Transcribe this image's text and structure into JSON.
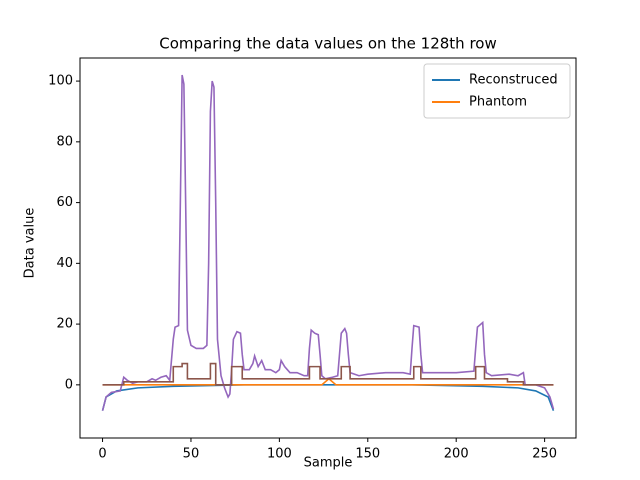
{
  "chart_data": {
    "type": "line",
    "title": "Comparing the data values on the 128th row",
    "xlabel": "Sample",
    "ylabel": "Data value",
    "xlim": [
      -12.75,
      267.75
    ],
    "ylim": [
      -17.5,
      107.6
    ],
    "xticks": [
      0,
      50,
      100,
      150,
      200,
      250
    ],
    "yticks": [
      0,
      20,
      40,
      60,
      80,
      100
    ],
    "legend": "upper right",
    "series": [
      {
        "name": "Reconstruced",
        "color": "#1f77b4",
        "x": [
          0,
          2,
          8,
          20,
          40,
          80,
          175,
          215,
          235,
          245,
          252,
          255
        ],
        "values": [
          -8.5,
          -4,
          -2,
          -1,
          -0.5,
          0,
          0,
          -0.5,
          -1,
          -2,
          -4,
          -8.5
        ]
      },
      {
        "name": "Phantom",
        "color": "#ff7f0e",
        "x": [
          0,
          124,
          128,
          132,
          255
        ],
        "values": [
          0,
          0,
          2,
          0,
          0
        ]
      },
      {
        "color": "#9467bd",
        "x": [
          0,
          2,
          5,
          10,
          12,
          14,
          17,
          20,
          25,
          28,
          30,
          33,
          36,
          38,
          40,
          41,
          43,
          44,
          45,
          46,
          47,
          48,
          50,
          53,
          57,
          59,
          60,
          61,
          62,
          63,
          64,
          65,
          67,
          69,
          71,
          72,
          73,
          74,
          76,
          78,
          79,
          80,
          83,
          85,
          86,
          88,
          90,
          92,
          95,
          98,
          100,
          101,
          103,
          106,
          110,
          114,
          116,
          117,
          118,
          120,
          122,
          123,
          124,
          126,
          130,
          133,
          134,
          135,
          137,
          138,
          139,
          140,
          145,
          150,
          160,
          170,
          174,
          175,
          176,
          179,
          180,
          181,
          190,
          200,
          210,
          211,
          212,
          215,
          216,
          217,
          220,
          230,
          235,
          238,
          239,
          245,
          250,
          253,
          255
        ],
        "values": [
          -8.5,
          -4,
          -2.5,
          -2,
          2.5,
          1.5,
          0.5,
          1,
          1,
          2,
          1.5,
          2.5,
          3,
          1.5,
          15,
          19,
          19.5,
          60,
          102,
          99,
          60,
          18,
          13,
          12,
          12,
          13,
          40,
          90,
          100,
          98,
          60,
          15,
          3,
          -1,
          -4,
          -3,
          5,
          15,
          17.5,
          17,
          10,
          5,
          5,
          7,
          9.5,
          6,
          8,
          5,
          5,
          4,
          5,
          8,
          6,
          4,
          4,
          3,
          3,
          12,
          18,
          17,
          16.5,
          10,
          3,
          2,
          2.5,
          3,
          10,
          17,
          18.5,
          17,
          10,
          4,
          3,
          3.5,
          4,
          4,
          3.5,
          12,
          19.5,
          19,
          10,
          4,
          4,
          4,
          4.5,
          12,
          19,
          20.5,
          10,
          4,
          3,
          3.5,
          3,
          4,
          0,
          0,
          -1,
          -4,
          -8
        ]
      },
      {
        "color": "#8c564b",
        "x": [
          0,
          12,
          12,
          40,
          40,
          45,
          45,
          48,
          48,
          61,
          61,
          64,
          64,
          73,
          73,
          79,
          79,
          117,
          117,
          123,
          123,
          135,
          135,
          140,
          140,
          176,
          176,
          180,
          180,
          211,
          211,
          216,
          216,
          229,
          229,
          238,
          238,
          255
        ],
        "values": [
          0,
          0,
          1,
          1,
          6,
          6,
          7,
          7,
          2,
          2,
          7,
          7,
          0,
          0,
          6,
          6,
          2,
          2,
          6,
          6,
          2,
          2,
          6,
          6,
          2,
          2,
          6,
          6,
          2,
          2,
          6,
          6,
          2,
          2,
          1,
          1,
          0,
          0
        ]
      }
    ]
  }
}
